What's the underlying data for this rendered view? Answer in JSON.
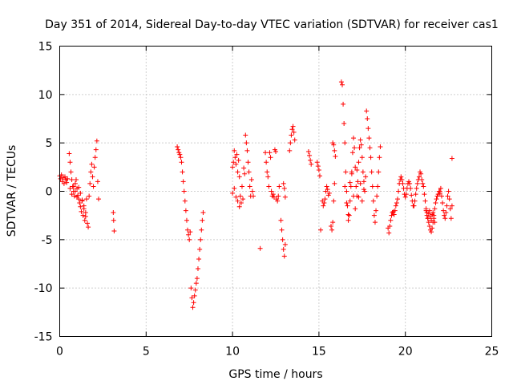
{
  "chart_data": {
    "type": "scatter",
    "title": "Day 351 of 2014, Sidereal Day-to-day VTEC variation (SDTVAR) for receiver cas1",
    "xlabel": "GPS time / hours",
    "ylabel": "SDTVAR / TECUs",
    "xlim": [
      0,
      25
    ],
    "ylim": [
      -15,
      15
    ],
    "xticks": [
      0,
      5,
      10,
      15,
      20,
      25
    ],
    "yticks": [
      -15,
      -10,
      -5,
      0,
      5,
      10,
      15
    ],
    "xtick_labels": [
      "0",
      "5",
      "10",
      "15",
      "20",
      "25"
    ],
    "ytick_labels": [
      "-15",
      "-10",
      "-5",
      "0",
      "5",
      "10",
      "15"
    ],
    "grid": true,
    "marker": "+",
    "color": "#ff0000",
    "series": [
      {
        "name": "SDTVAR",
        "segments": [
          {
            "x": [
              0.0,
              0.05,
              0.1,
              0.15,
              0.2,
              0.25,
              0.3,
              0.35,
              0.4,
              0.45
            ],
            "y": [
              1.6,
              1.3,
              1.7,
              1.0,
              1.4,
              0.8,
              1.5,
              1.2,
              0.9,
              1.3
            ]
          },
          {
            "x": [
              0.55,
              0.6,
              0.65,
              0.7,
              0.75,
              0.8,
              0.85,
              0.9,
              0.95,
              1.0,
              1.05,
              1.1,
              1.15,
              1.2,
              1.25,
              1.3,
              1.35,
              1.4,
              1.45,
              1.5,
              1.55
            ],
            "y": [
              3.9,
              3.0,
              2.0,
              1.2,
              0.5,
              0.0,
              -0.5,
              0.8,
              1.2,
              0.3,
              -0.4,
              -0.8,
              -1.2,
              -1.6,
              -2.1,
              -1.0,
              -2.5,
              -1.5,
              -3.0,
              -2.2,
              -0.8
            ]
          },
          {
            "x": [
              0.6,
              0.7,
              0.8,
              0.9,
              1.0,
              1.1,
              1.2,
              1.3,
              1.4,
              1.5
            ],
            "y": [
              0.3,
              -0.3,
              0.5,
              0.0,
              -0.6,
              0.4,
              -0.2,
              -0.9,
              -1.8,
              -2.6
            ]
          },
          {
            "x": [
              1.6,
              1.65,
              1.7,
              1.75,
              1.8,
              1.85,
              1.9,
              1.95,
              2.0,
              2.05,
              2.1,
              2.15,
              2.2,
              2.25
            ],
            "y": [
              -3.3,
              -3.7,
              -0.5,
              0.8,
              2.0,
              2.8,
              1.5,
              0.5,
              2.5,
              3.5,
              4.3,
              5.2,
              1.0,
              -0.8
            ]
          },
          {
            "x": [
              3.1,
              3.12,
              3.15
            ],
            "y": [
              -2.2,
              -3.0,
              -4.1
            ]
          },
          {
            "x": [
              6.8,
              6.85,
              6.9,
              6.95,
              7.0,
              7.05,
              7.1,
              7.15,
              7.2,
              7.25,
              7.3,
              7.35,
              7.4,
              7.45,
              7.5,
              7.55
            ],
            "y": [
              4.6,
              4.3,
              4.0,
              3.8,
              3.5,
              3.0,
              2.0,
              1.0,
              0.0,
              -1.0,
              -2.0,
              -3.0,
              -4.0,
              -4.5,
              -5.0,
              -4.2
            ]
          },
          {
            "x": [
              7.6,
              7.65,
              7.7,
              7.75,
              7.8,
              7.85,
              7.9,
              7.95,
              8.0,
              8.05,
              8.1,
              8.15,
              8.2,
              8.25,
              8.3
            ],
            "y": [
              -10.0,
              -11.0,
              -12.0,
              -11.5,
              -10.8,
              -10.2,
              -9.5,
              -9.0,
              -8.0,
              -7.0,
              -6.0,
              -5.0,
              -4.0,
              -3.0,
              -2.2
            ]
          },
          {
            "x": [
              10.0,
              10.05,
              10.1,
              10.15,
              10.2,
              10.25,
              10.3,
              10.35,
              10.4,
              10.45,
              10.5,
              10.55,
              10.6,
              10.65,
              10.7
            ],
            "y": [
              2.5,
              3.0,
              4.2,
              3.5,
              2.8,
              3.8,
              2.0,
              3.2,
              1.5,
              -0.5,
              -1.2,
              0.5,
              -0.8,
              2.4,
              1.8
            ]
          },
          {
            "x": [
              10.0,
              10.1,
              10.2,
              10.3,
              10.4
            ],
            "y": [
              -0.2,
              0.3,
              -0.6,
              -1.0,
              -1.6
            ]
          },
          {
            "x": [
              10.75,
              10.8,
              10.85,
              10.9,
              10.95,
              11.0,
              11.05,
              11.1,
              11.15,
              11.2
            ],
            "y": [
              5.8,
              5.0,
              4.2,
              3.0,
              2.0,
              0.5,
              -0.5,
              1.2,
              0.0,
              -0.5
            ]
          },
          {
            "x": [
              11.6
            ],
            "y": [
              -5.9
            ]
          },
          {
            "x": [
              11.9,
              11.95,
              12.0,
              12.05,
              12.1,
              12.15,
              12.2,
              12.25,
              12.3,
              12.35,
              12.4,
              12.45,
              12.5,
              12.55,
              12.6,
              12.65,
              12.7
            ],
            "y": [
              4.0,
              3.0,
              2.0,
              1.5,
              0.5,
              4.0,
              3.5,
              0.0,
              -0.5,
              -0.3,
              -0.6,
              4.3,
              4.1,
              -0.8,
              -1.0,
              -0.5,
              0.5
            ]
          },
          {
            "x": [
              12.8,
              12.85,
              12.9,
              12.95,
              13.0,
              13.05
            ],
            "y": [
              -3.0,
              -4.0,
              -5.0,
              -6.0,
              -6.7,
              -5.5
            ]
          },
          {
            "x": [
              12.95,
              13.0,
              13.05
            ],
            "y": [
              0.8,
              0.3,
              -0.6
            ]
          },
          {
            "x": [
              13.3,
              13.35,
              13.4,
              13.45,
              13.5,
              13.55,
              13.6
            ],
            "y": [
              4.2,
              5.0,
              5.8,
              6.4,
              6.7,
              6.1,
              5.3
            ]
          },
          {
            "x": [
              14.4,
              14.45,
              14.5,
              14.55
            ],
            "y": [
              4.1,
              3.7,
              3.2,
              2.8
            ]
          },
          {
            "x": [
              14.9,
              14.95,
              15.0,
              15.05,
              15.1
            ],
            "y": [
              3.0,
              2.6,
              2.2,
              1.6,
              -4.0
            ]
          },
          {
            "x": [
              15.2,
              15.25,
              15.3,
              15.35,
              15.4,
              15.45,
              15.5,
              15.55,
              15.6
            ],
            "y": [
              -1.0,
              -1.5,
              -1.2,
              -0.8,
              0.0,
              0.5,
              0.2,
              -0.4,
              -0.2
            ]
          },
          {
            "x": [
              15.7,
              15.75,
              15.8,
              15.85,
              15.9
            ],
            "y": [
              -3.6,
              -4.0,
              -3.2,
              -1.0,
              0.8
            ]
          },
          {
            "x": [
              15.8,
              15.85,
              15.9,
              15.95
            ],
            "y": [
              5.0,
              4.8,
              4.2,
              3.6
            ]
          },
          {
            "x": [
              16.3,
              16.35,
              16.4,
              16.45,
              16.5,
              16.55,
              16.6,
              16.65,
              16.7,
              16.75,
              16.8,
              16.85,
              16.9,
              16.95,
              17.0,
              17.05,
              17.1,
              17.15,
              17.2,
              17.25,
              17.3,
              17.35,
              17.4,
              17.45,
              17.5,
              17.55,
              17.6,
              17.65,
              17.7
            ],
            "y": [
              11.3,
              11.0,
              9.0,
              7.0,
              5.0,
              2.0,
              0.0,
              -1.5,
              -3.0,
              -2.5,
              -1.0,
              0.5,
              2.0,
              4.0,
              5.5,
              4.5,
              2.5,
              0.5,
              -0.5,
              1.0,
              3.0,
              4.5,
              5.3,
              4.8,
              3.5,
              2.0,
              1.0,
              0.0,
              1.5
            ]
          },
          {
            "x": [
              16.5,
              16.6,
              16.7,
              16.8,
              16.9,
              17.0,
              17.1,
              17.2,
              17.3,
              17.4,
              17.5,
              17.6
            ],
            "y": [
              0.5,
              -1.2,
              -2.4,
              0.9,
              1.8,
              -0.5,
              -1.8,
              2.2,
              -0.6,
              0.8,
              -1.0,
              0.2
            ]
          },
          {
            "x": [
              17.75,
              17.8,
              17.85,
              17.9,
              17.95,
              18.0,
              18.05,
              18.1,
              18.15,
              18.2,
              18.25,
              18.3,
              18.35,
              18.4,
              18.45,
              18.5,
              18.55
            ],
            "y": [
              8.3,
              7.5,
              6.5,
              5.5,
              4.5,
              3.5,
              2.0,
              0.5,
              -1.0,
              -2.5,
              -3.2,
              -2.0,
              -0.5,
              0.5,
              2.0,
              3.5,
              4.6
            ]
          },
          {
            "x": [
              19.0,
              19.05,
              19.1,
              19.15,
              19.2,
              19.25,
              19.3,
              19.35,
              19.4,
              19.45,
              19.5,
              19.55,
              19.6,
              19.65,
              19.7,
              19.75,
              19.8,
              19.85,
              19.9,
              19.95,
              20.0,
              20.05,
              20.1,
              20.15,
              20.2,
              20.25,
              20.3,
              20.35,
              20.4,
              20.45,
              20.5,
              20.55,
              20.6,
              20.65,
              20.7,
              20.75,
              20.8,
              20.85,
              20.9,
              20.95,
              21.0,
              21.05,
              21.1,
              21.15,
              21.2,
              21.25,
              21.3,
              21.35,
              21.4,
              21.45,
              21.5,
              21.55,
              21.6,
              21.65,
              21.7,
              21.75,
              21.8,
              21.85,
              21.9,
              21.95,
              22.0
            ],
            "y": [
              -3.8,
              -4.3,
              -3.6,
              -3.0,
              -2.5,
              -2.2,
              -2.1,
              -2.4,
              -2.0,
              -1.5,
              -1.2,
              -0.8,
              0.0,
              0.8,
              1.2,
              1.5,
              1.2,
              0.8,
              0.3,
              -0.3,
              -0.6,
              -0.3,
              0.3,
              0.8,
              1.0,
              0.8,
              0.3,
              -0.4,
              -1.0,
              -1.5,
              -1.5,
              -1.0,
              -0.3,
              0.3,
              0.8,
              1.2,
              1.5,
              2.0,
              1.8,
              1.2,
              0.8,
              0.5,
              -0.3,
              -1.0,
              -1.8,
              -2.2,
              -2.8,
              -3.2,
              -3.6,
              -4.0,
              -4.2,
              -3.8,
              -3.2,
              -2.5,
              -1.8,
              -1.2,
              -0.8,
              -0.5,
              -0.3,
              0.0,
              -0.2
            ]
          },
          {
            "x": [
              21.2,
              21.25,
              21.3,
              21.35,
              21.4,
              21.45,
              21.5,
              21.55,
              21.6,
              21.65,
              21.7
            ],
            "y": [
              -2.0,
              -2.5,
              -2.8,
              -2.3,
              -2.0,
              -2.6,
              -3.0,
              -2.4,
              -2.2,
              -2.8,
              -3.2
            ]
          },
          {
            "x": [
              22.0,
              22.05,
              22.1,
              22.15,
              22.2,
              22.25,
              22.3,
              22.35,
              22.4,
              22.45,
              22.5,
              22.55,
              22.6,
              22.65,
              22.7
            ],
            "y": [
              0.0,
              0.3,
              -0.5,
              -1.2,
              -2.0,
              -2.5,
              -2.8,
              -2.2,
              -1.5,
              -0.5,
              0.0,
              -0.8,
              -1.8,
              -2.8,
              -1.5
            ]
          },
          {
            "x": [
              22.7
            ],
            "y": [
              3.4
            ]
          }
        ]
      }
    ]
  }
}
